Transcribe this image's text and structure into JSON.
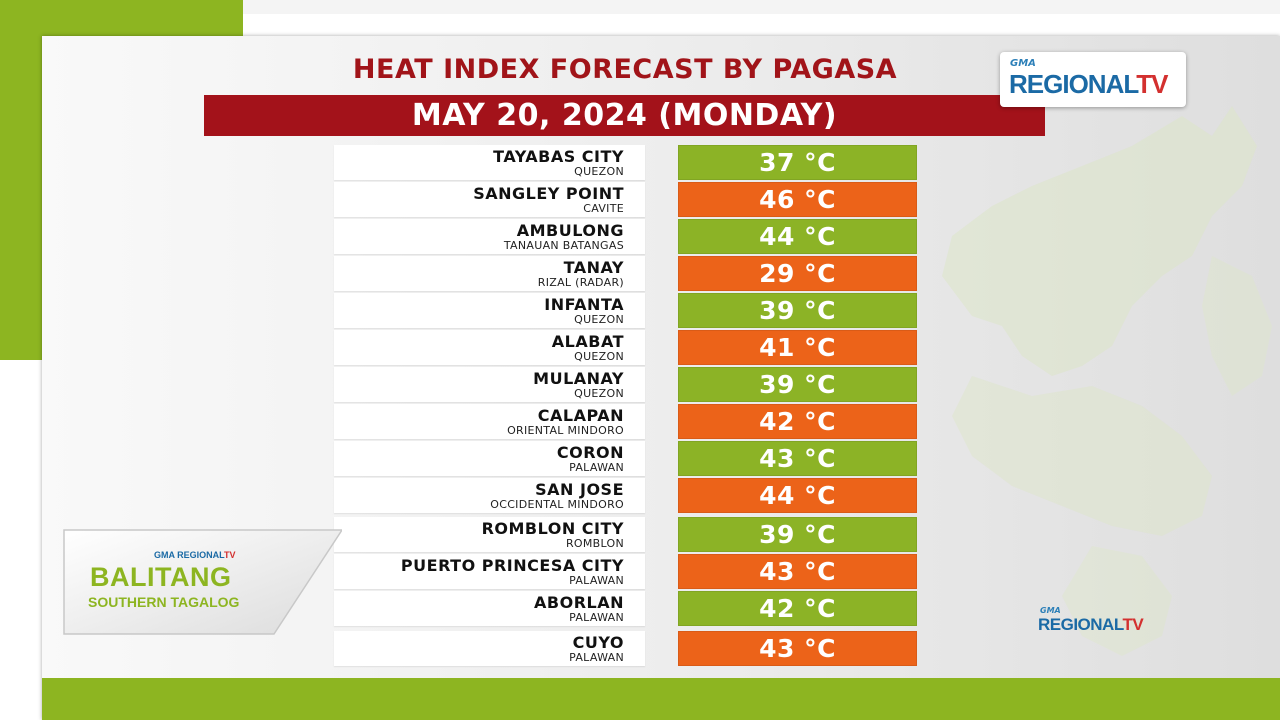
{
  "title": "HEAT INDEX FORECAST BY PAGASA",
  "date": "MAY 20, 2024 (MONDAY)",
  "logo_top": {
    "gma": "GMA",
    "regional": "REGIONAL",
    "tv": "TV"
  },
  "logo_bottom": {
    "gma": "GMA",
    "regional": "REGIONAL",
    "tv": "TV"
  },
  "badge": {
    "gma": "GMA REGIONAL",
    "tv": "TV",
    "title": "BALITANG",
    "subtitle": "SOUTHERN TAGALOG"
  },
  "colors": {
    "green": "#8cb326",
    "orange": "#ec6319",
    "date_bar": "#a3121a",
    "title": "#a11419"
  },
  "rows": [
    {
      "name": "TAYABAS CITY",
      "sub": "QUEZON",
      "temp": "37 °C",
      "color": "green"
    },
    {
      "name": "SANGLEY POINT",
      "sub": "CAVITE",
      "temp": "46 °C",
      "color": "orange"
    },
    {
      "name": "AMBULONG",
      "sub": "TANAUAN BATANGAS",
      "temp": "44 °C",
      "color": "green"
    },
    {
      "name": "TANAY",
      "sub": "RIZAL (RADAR)",
      "temp": "29 °C",
      "color": "orange"
    },
    {
      "name": "INFANTA",
      "sub": "QUEZON",
      "temp": "39 °C",
      "color": "green"
    },
    {
      "name": "ALABAT",
      "sub": "QUEZON",
      "temp": "41 °C",
      "color": "orange"
    },
    {
      "name": "MULANAY",
      "sub": "QUEZON",
      "temp": "39 °C",
      "color": "green"
    },
    {
      "name": "CALAPAN",
      "sub": "ORIENTAL MINDORO",
      "temp": "42 °C",
      "color": "orange"
    },
    {
      "name": "CORON",
      "sub": "PALAWAN",
      "temp": "43 °C",
      "color": "green"
    },
    {
      "name": "SAN JOSE",
      "sub": "OCCIDENTAL MINDORO",
      "temp": "44 °C",
      "color": "orange"
    },
    {
      "name": "ROMBLON CITY",
      "sub": "ROMBLON",
      "temp": "39 °C",
      "color": "green"
    },
    {
      "name": "PUERTO PRINCESA CITY",
      "sub": "PALAWAN",
      "temp": "43 °C",
      "color": "orange"
    },
    {
      "name": "ABORLAN",
      "sub": "PALAWAN",
      "temp": "42 °C",
      "color": "green"
    },
    {
      "name": "CUYO",
      "sub": "PALAWAN",
      "temp": "43 °C",
      "color": "orange"
    }
  ]
}
